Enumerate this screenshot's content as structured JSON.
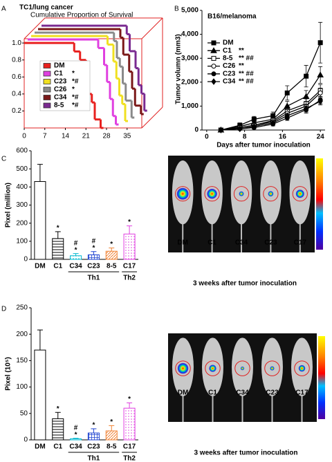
{
  "chart_data": [
    {
      "panel": "A",
      "type": "survival",
      "title": "TC1/lung cancer",
      "subtitle": "Cumulative Proportion of Survival",
      "xlim": [
        0,
        40
      ],
      "xticks": [
        0,
        7,
        14,
        21,
        28,
        35
      ],
      "ylim": [
        0,
        1.05
      ],
      "yticks": [
        0.2,
        0.4,
        0.6,
        0.8,
        {
          "value": 1,
          "label": "1.0"
        }
      ],
      "series": [
        {
          "name": "DM",
          "color": "#e8201e",
          "x": [
            0,
            17,
            19,
            21,
            22,
            23,
            24,
            26
          ],
          "values": [
            1,
            0.9,
            0.8,
            0.6,
            0.4,
            0.3,
            0.1,
            0
          ]
        },
        {
          "name": "C1",
          "color": "#e040e0",
          "annotation": "*",
          "x": [
            0,
            24,
            26,
            27,
            28,
            29,
            30
          ],
          "values": [
            1,
            0.9,
            0.7,
            0.5,
            0.3,
            0.1,
            0
          ]
        },
        {
          "name": "C23",
          "color": "#f0e020",
          "annotation": "*#",
          "x": [
            0,
            26,
            28,
            29,
            30,
            31,
            32
          ],
          "values": [
            1,
            0.9,
            0.7,
            0.5,
            0.3,
            0.2,
            0
          ]
        },
        {
          "name": "C26",
          "color": "#8a8a8a",
          "annotation": "*",
          "x": [
            0,
            27,
            28,
            29,
            30,
            31,
            33
          ],
          "values": [
            1,
            0.9,
            0.7,
            0.6,
            0.4,
            0.2,
            0
          ]
        },
        {
          "name": "C34",
          "color": "#7a1818",
          "annotation": "*#",
          "x": [
            0,
            28,
            29,
            31,
            32,
            33,
            35
          ],
          "values": [
            1,
            0.9,
            0.7,
            0.5,
            0.3,
            0.1,
            0
          ]
        },
        {
          "name": "8-5",
          "color": "#7a2a90",
          "annotation": "*#",
          "x": [
            0,
            29,
            30,
            32,
            33,
            34,
            35
          ],
          "values": [
            1,
            0.9,
            0.7,
            0.5,
            0.3,
            0.2,
            0
          ]
        }
      ]
    },
    {
      "panel": "B",
      "type": "line",
      "title": "B16/melanoma",
      "xlabel": "Days after tumor inoculation",
      "ylabel": "Tumor volumn (mm3)",
      "x": [
        3,
        7,
        10,
        14,
        17,
        21,
        24
      ],
      "xlim": [
        -1,
        25
      ],
      "xticks": [
        0,
        8,
        16,
        24
      ],
      "ylim": [
        0,
        5000
      ],
      "yticks": [
        0,
        {
          "value": 1000,
          "label": "1,000"
        },
        {
          "value": 2000,
          "label": "2,000"
        },
        {
          "value": 3000,
          "label": "3,000"
        },
        {
          "value": 4000,
          "label": "4,000"
        },
        {
          "value": 5000,
          "label": "5,000"
        }
      ],
      "series": [
        {
          "name": "DM",
          "color": "#000000",
          "marker": "filled-square",
          "values": [
            0,
            200,
            450,
            600,
            1550,
            2250,
            3650
          ],
          "errors": [
            20,
            100,
            120,
            150,
            300,
            450,
            850
          ]
        },
        {
          "name": "C1",
          "color": "#000000",
          "marker": "filled-triangle",
          "annotation": "**",
          "values": [
            0,
            150,
            300,
            450,
            1000,
            1400,
            2300
          ],
          "errors": [
            10,
            80,
            80,
            100,
            200,
            250,
            350
          ]
        },
        {
          "name": "8-5",
          "color": "#000000",
          "marker": "open-square",
          "annotation": "** ##",
          "values": [
            0,
            100,
            200,
            400,
            800,
            1100,
            1650
          ],
          "errors": [
            10,
            50,
            60,
            100,
            150,
            200,
            250
          ]
        },
        {
          "name": "C26",
          "color": "#000000",
          "marker": "open-circle",
          "annotation": "**",
          "values": [
            0,
            100,
            200,
            350,
            700,
            1000,
            1550
          ],
          "errors": [
            10,
            50,
            60,
            80,
            150,
            200,
            200
          ]
        },
        {
          "name": "C23",
          "color": "#000000",
          "marker": "filled-circle",
          "annotation": "** ##",
          "values": [
            0,
            50,
            100,
            250,
            500,
            850,
            1250
          ],
          "errors": [
            10,
            30,
            50,
            80,
            100,
            150,
            150
          ]
        },
        {
          "name": "C34",
          "color": "#000000",
          "marker": "filled-diamond",
          "annotation": "** ##",
          "values": [
            0,
            50,
            150,
            300,
            600,
            900,
            1200
          ],
          "errors": [
            10,
            30,
            50,
            80,
            100,
            150,
            150
          ]
        }
      ]
    },
    {
      "panel": "C",
      "type": "bar",
      "ylabel": "Pixel (million)",
      "categories": [
        "DM",
        "C1",
        "C34",
        "C23",
        "8-5",
        "C17"
      ],
      "values": [
        430,
        115,
        20,
        25,
        45,
        140
      ],
      "errors": [
        95,
        38,
        12,
        18,
        18,
        45
      ],
      "colors": [
        "#000000",
        "#000000",
        "#00b8d0",
        "#1a3fd0",
        "#f08030",
        "#e040e0"
      ],
      "fills": [
        "none",
        "hlines",
        "dots",
        "grid",
        "diagonal",
        "dots"
      ],
      "markers": [
        null,
        [
          "*"
        ],
        [
          "#",
          "*"
        ],
        [
          "#",
          "*"
        ],
        [
          "*"
        ],
        [
          "*"
        ]
      ],
      "groups": [
        {
          "label": "Th1",
          "categories": [
            "C34",
            "C23",
            "8-5"
          ]
        },
        {
          "label": "Th2",
          "categories": [
            "C17"
          ]
        }
      ],
      "ylim": [
        0,
        600
      ],
      "yticks": [
        0,
        100,
        200,
        300,
        400,
        500,
        600
      ],
      "image": {
        "labels": [
          "DM",
          "C1",
          "C34",
          "C23",
          "C17"
        ],
        "caption": "3 weeks after tumor inoculation"
      }
    },
    {
      "panel": "D",
      "type": "bar",
      "ylabel": "Pixel (10⁵)",
      "categories": [
        "DM",
        "C1",
        "C34",
        "C23",
        "8-5",
        "C17"
      ],
      "values": [
        170,
        40,
        2,
        13,
        17,
        60
      ],
      "errors": [
        38,
        12,
        1,
        8,
        10,
        10
      ],
      "colors": [
        "#000000",
        "#000000",
        "#00b8d0",
        "#1a3fd0",
        "#f08030",
        "#e040e0"
      ],
      "fills": [
        "none",
        "hlines",
        "dots",
        "grid",
        "diagonal",
        "dots"
      ],
      "markers": [
        null,
        [
          "*"
        ],
        [
          "#",
          "*"
        ],
        [
          "*"
        ],
        [
          "*"
        ],
        [
          "*"
        ]
      ],
      "groups": [
        {
          "label": "Th1",
          "categories": [
            "C34",
            "C23",
            "8-5"
          ]
        },
        {
          "label": "Th2",
          "categories": [
            "C17"
          ]
        }
      ],
      "ylim": [
        0,
        250
      ],
      "yticks": [
        0,
        50,
        100,
        150,
        200,
        250
      ],
      "image": {
        "labels": [
          "DM",
          "C1",
          "C34",
          "C23",
          "C17"
        ],
        "caption": "3 weeks after tumor inoculation"
      }
    }
  ]
}
